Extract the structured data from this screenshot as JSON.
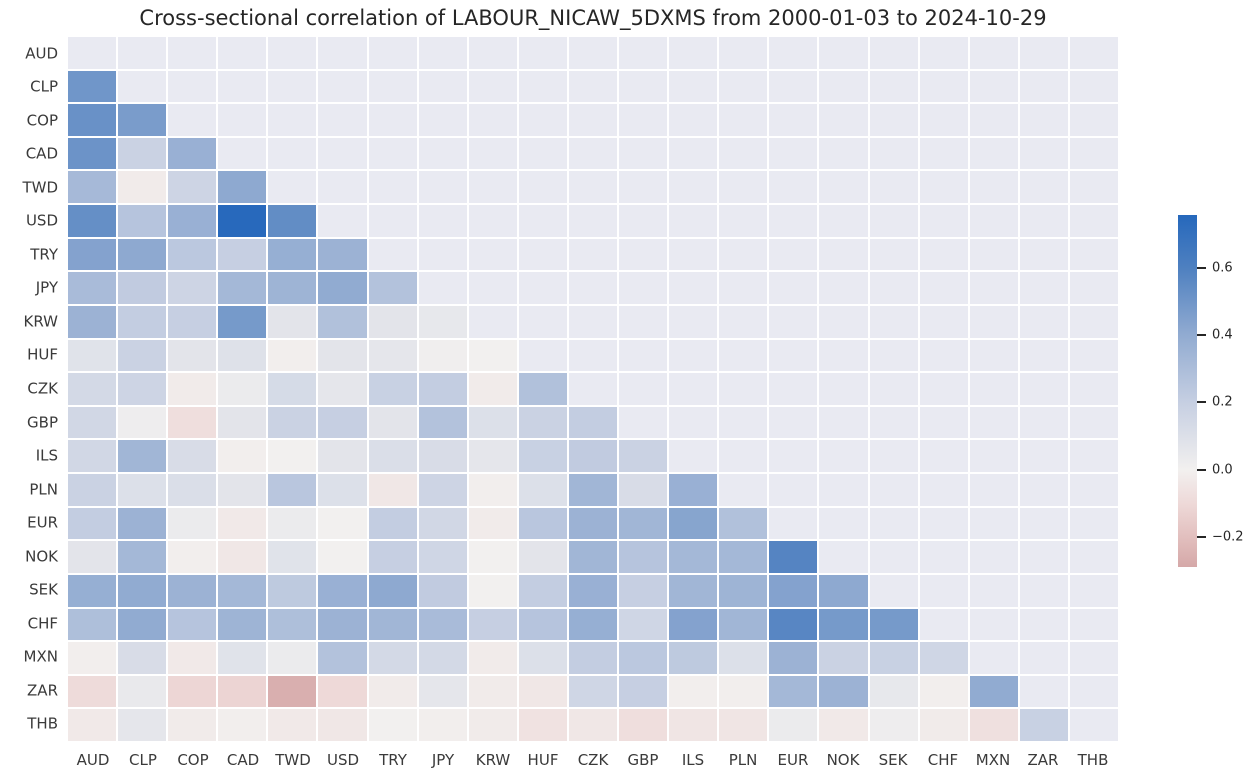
{
  "title": "Cross-sectional correlation of LABOUR_NICAW_5DXMS from 2000-01-03 to 2024-10-29",
  "chart_data": {
    "type": "heatmap",
    "title": "Cross-sectional correlation of LABOUR_NICAW_5DXMS from 2000-01-03 to 2024-10-29",
    "mask": "upper triangle and diagonal hidden",
    "legend_position": "right-colorbar",
    "grid": true,
    "labels": [
      "AUD",
      "CLP",
      "COP",
      "CAD",
      "TWD",
      "USD",
      "TRY",
      "JPY",
      "KRW",
      "HUF",
      "CZK",
      "GBP",
      "ILS",
      "PLN",
      "EUR",
      "NOK",
      "SEK",
      "CHF",
      "MXN",
      "ZAR",
      "THB"
    ],
    "rows": [
      {
        "label": "AUD",
        "values": []
      },
      {
        "label": "CLP",
        "values": [
          0.5
        ]
      },
      {
        "label": "COP",
        "values": [
          0.52,
          0.47
        ]
      },
      {
        "label": "CAD",
        "values": [
          0.51,
          0.18,
          0.37
        ]
      },
      {
        "label": "TWD",
        "values": [
          0.32,
          -0.02,
          0.17,
          0.41
        ]
      },
      {
        "label": "USD",
        "values": [
          0.53,
          0.26,
          0.37,
          0.75,
          0.54
        ]
      },
      {
        "label": "TRY",
        "values": [
          0.44,
          0.41,
          0.24,
          0.2,
          0.38,
          0.36
        ]
      },
      {
        "label": "JPY",
        "values": [
          0.31,
          0.22,
          0.17,
          0.33,
          0.35,
          0.4,
          0.27
        ]
      },
      {
        "label": "KRW",
        "values": [
          0.36,
          0.21,
          0.2,
          0.48,
          0.07,
          0.28,
          0.07,
          0.05
        ]
      },
      {
        "label": "HUF",
        "values": [
          0.08,
          0.18,
          0.07,
          0.09,
          -0.01,
          0.07,
          0.06,
          0.01,
          0.0
        ]
      },
      {
        "label": "CZK",
        "values": [
          0.14,
          0.17,
          -0.02,
          0.03,
          0.13,
          0.06,
          0.19,
          0.21,
          -0.02,
          0.28
        ]
      },
      {
        "label": "GBP",
        "values": [
          0.15,
          0.02,
          -0.08,
          0.07,
          0.18,
          0.2,
          0.07,
          0.27,
          0.1,
          0.18,
          0.21
        ]
      },
      {
        "label": "ILS",
        "values": [
          0.15,
          0.34,
          0.12,
          -0.01,
          0.0,
          0.07,
          0.11,
          0.12,
          0.06,
          0.19,
          0.22,
          0.18
        ]
      },
      {
        "label": "PLN",
        "values": [
          0.18,
          0.1,
          0.11,
          0.07,
          0.25,
          0.1,
          -0.04,
          0.17,
          -0.01,
          0.1,
          0.34,
          0.12,
          0.37
        ]
      },
      {
        "label": "EUR",
        "values": [
          0.21,
          0.36,
          0.03,
          -0.03,
          0.03,
          0.0,
          0.21,
          0.15,
          -0.02,
          0.25,
          0.36,
          0.34,
          0.43,
          0.28
        ]
      },
      {
        "label": "NOK",
        "values": [
          0.07,
          0.33,
          -0.01,
          -0.04,
          0.08,
          0.0,
          0.2,
          0.16,
          0.0,
          0.07,
          0.34,
          0.26,
          0.33,
          0.33,
          0.58
        ]
      },
      {
        "label": "SEK",
        "values": [
          0.38,
          0.4,
          0.36,
          0.33,
          0.23,
          0.37,
          0.41,
          0.22,
          0.0,
          0.21,
          0.37,
          0.2,
          0.34,
          0.35,
          0.44,
          0.41
        ]
      },
      {
        "label": "CHF",
        "values": [
          0.29,
          0.4,
          0.26,
          0.35,
          0.29,
          0.36,
          0.34,
          0.31,
          0.2,
          0.26,
          0.38,
          0.16,
          0.44,
          0.34,
          0.57,
          0.48,
          0.48
        ]
      },
      {
        "label": "MXN",
        "values": [
          -0.01,
          0.12,
          -0.03,
          0.08,
          0.03,
          0.27,
          0.14,
          0.14,
          -0.02,
          0.1,
          0.21,
          0.24,
          0.23,
          0.1,
          0.36,
          0.18,
          0.19,
          0.16
        ]
      },
      {
        "label": "ZAR",
        "values": [
          -0.09,
          0.04,
          -0.11,
          -0.12,
          -0.26,
          -0.1,
          -0.02,
          0.06,
          -0.02,
          -0.04,
          0.16,
          0.2,
          -0.01,
          -0.01,
          0.33,
          0.36,
          0.05,
          -0.01,
          0.4
        ]
      },
      {
        "label": "THB",
        "values": [
          -0.03,
          0.06,
          -0.02,
          -0.01,
          -0.03,
          -0.04,
          0.0,
          -0.01,
          -0.02,
          -0.06,
          -0.04,
          -0.08,
          -0.05,
          -0.05,
          0.03,
          -0.03,
          0.02,
          -0.02,
          -0.07,
          0.19
        ]
      }
    ],
    "colorbar": {
      "vmin": -0.288,
      "vmax": 0.756,
      "tick_values": [
        0.6,
        0.4,
        0.2,
        0.0,
        -0.2
      ],
      "tick_labels": [
        "0.6",
        "0.4",
        "0.2",
        "0.0",
        "−0.2"
      ]
    },
    "colormap_stops": [
      [
        -0.288,
        "#d5a8a8"
      ],
      [
        -0.2,
        "#e2bfbe"
      ],
      [
        -0.1,
        "#eed9d8"
      ],
      [
        0.0,
        "#f2f0ef"
      ],
      [
        0.2,
        "#c6cfe2"
      ],
      [
        0.4,
        "#91abd1"
      ],
      [
        0.6,
        "#4e80c0"
      ],
      [
        0.756,
        "#2668bc"
      ]
    ],
    "plot_background": "#e9eaf2",
    "grid_line_color": "#ffffff",
    "text_color": "#262626"
  }
}
